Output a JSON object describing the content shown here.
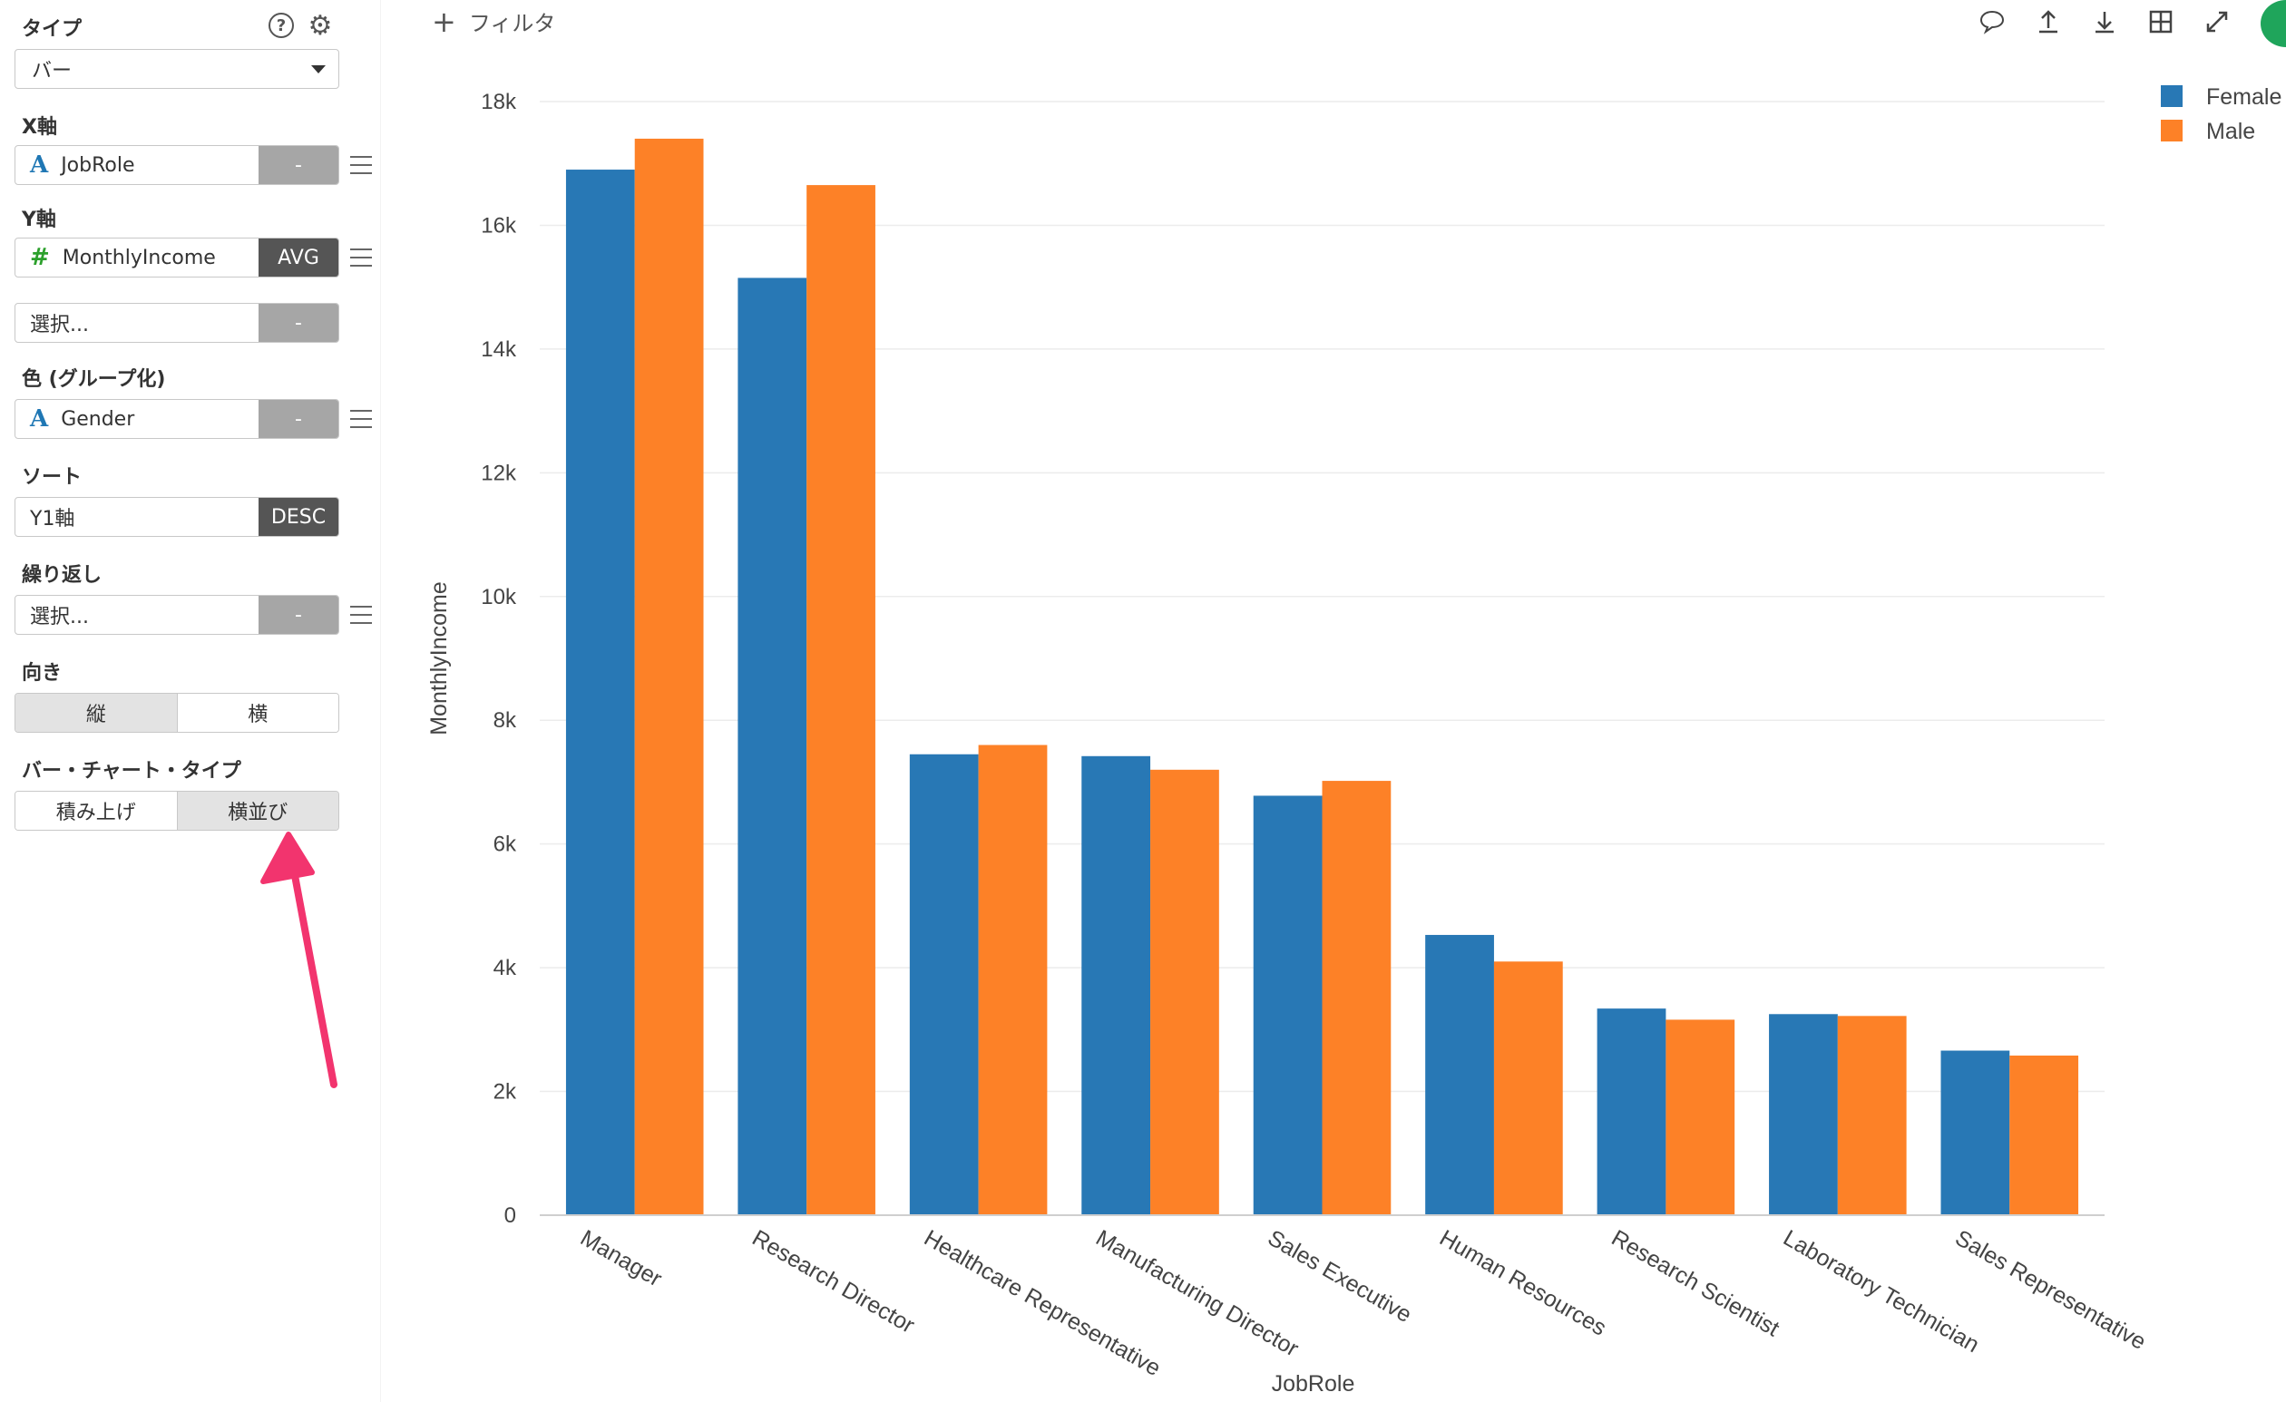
{
  "sidebar": {
    "type_label": "タイプ",
    "type_value": "バー",
    "x_axis": {
      "label": "X軸",
      "field": "JobRole",
      "btn": "-"
    },
    "y_axis": {
      "label": "Y軸",
      "field": "MonthlyIncome",
      "agg": "AVG"
    },
    "y_axis2": {
      "placeholder": "選択...",
      "btn": "-"
    },
    "color": {
      "label": "色 (グループ化)",
      "field": "Gender",
      "btn": "-"
    },
    "sort": {
      "label": "ソート",
      "field": "Y1軸",
      "order": "DESC"
    },
    "repeat": {
      "label": "繰り返し",
      "placeholder": "選択...",
      "btn": "-"
    },
    "orientation": {
      "label": "向き",
      "options": [
        "縦",
        "横"
      ],
      "active": 0
    },
    "bar_type": {
      "label": "バー・チャート・タイプ",
      "options": [
        "積み上げ",
        "横並び"
      ],
      "active": 1
    }
  },
  "main": {
    "filter_label": "フィルタ",
    "toolbar": [
      "comment-icon",
      "upload-icon",
      "download-icon",
      "grid-icon",
      "expand-icon"
    ]
  },
  "colors": {
    "female": "#2878b5",
    "male": "#fd8127",
    "arrow": "#f2346e"
  },
  "chart_data": {
    "type": "bar",
    "xlabel": "JobRole",
    "ylabel": "MonthlyIncome",
    "ylim": [
      0,
      18000
    ],
    "yticks": [
      0,
      2000,
      4000,
      6000,
      8000,
      10000,
      12000,
      14000,
      16000,
      18000
    ],
    "ytick_labels": [
      "0",
      "2k",
      "4k",
      "6k",
      "8k",
      "10k",
      "12k",
      "14k",
      "16k",
      "18k"
    ],
    "categories": [
      "Manager",
      "Research Director",
      "Healthcare Representative",
      "Manufacturing Director",
      "Sales Executive",
      "Human Resources",
      "Research Scientist",
      "Laboratory Technician",
      "Sales Representative"
    ],
    "series": [
      {
        "name": "Female",
        "values": [
          16900,
          15150,
          7450,
          7420,
          6780,
          4530,
          3340,
          3250,
          2660
        ]
      },
      {
        "name": "Male",
        "values": [
          17400,
          16650,
          7600,
          7200,
          7020,
          4100,
          3160,
          3220,
          2580
        ]
      }
    ],
    "grid": true,
    "legend_position": "top-right"
  }
}
